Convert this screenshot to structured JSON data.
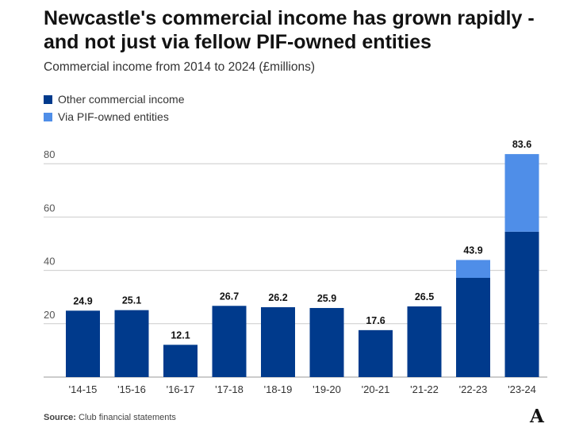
{
  "header": {
    "title": "Newcastle's commercial income has grown rapidly - and not just via fellow PIF-owned entities",
    "subtitle": "Commercial income from 2014 to 2024 (£millions)"
  },
  "legend": [
    {
      "label": "Other commercial income",
      "color": "#003a8c"
    },
    {
      "label": "Via PIF-owned entities",
      "color": "#4f8ee8"
    }
  ],
  "footer": {
    "source_prefix": "Source:",
    "source_text": "Club financial statements",
    "logo": "A"
  },
  "chart_data": {
    "type": "bar",
    "stacked": true,
    "categories": [
      "'14-15",
      "'15-16",
      "'16-17",
      "'17-18",
      "'18-19",
      "'19-20",
      "'20-21",
      "'21-22",
      "'22-23",
      "'23-24"
    ],
    "series": [
      {
        "name": "Other commercial income",
        "color": "#003a8c",
        "values": [
          24.9,
          25.1,
          12.1,
          26.7,
          26.2,
          25.9,
          17.6,
          26.5,
          37.2,
          54.5
        ]
      },
      {
        "name": "Via PIF-owned entities",
        "color": "#4f8ee8",
        "values": [
          0,
          0,
          0,
          0,
          0,
          0,
          0,
          0,
          6.7,
          29.1
        ]
      }
    ],
    "totals": [
      "24.9",
      "25.1",
      "12.1",
      "26.7",
      "26.2",
      "25.9",
      "17.6",
      "26.5",
      "43.9",
      "83.6"
    ],
    "yticks": [
      20,
      40,
      60,
      80
    ],
    "ylim": [
      0,
      90
    ],
    "grid": true
  }
}
